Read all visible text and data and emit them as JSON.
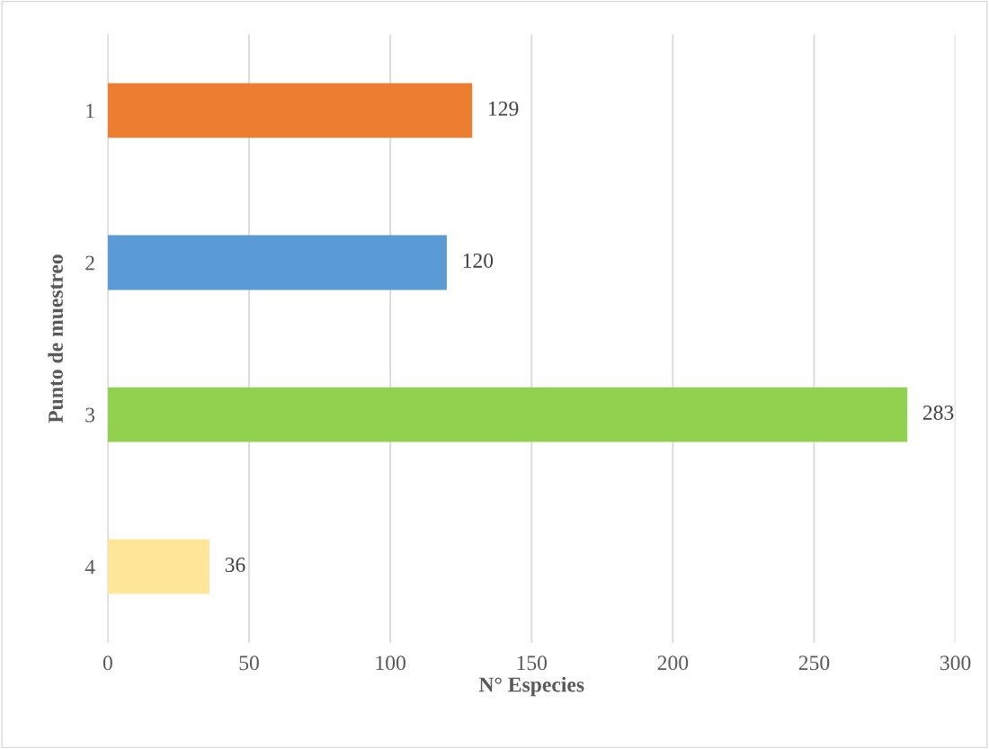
{
  "chart_data": {
    "type": "bar",
    "orientation": "horizontal",
    "xlabel": "N° Especies",
    "ylabel": "Punto de muestreo",
    "categories": [
      "1",
      "2",
      "3",
      "4"
    ],
    "values": [
      129,
      120,
      283,
      36
    ],
    "colors": [
      "#ed7d31",
      "#5b9bd5",
      "#92d050",
      "#ffe699"
    ],
    "xlim": [
      0,
      300
    ],
    "xticks": [
      0,
      50,
      100,
      150,
      200,
      250,
      300
    ],
    "grid": "x",
    "data_labels": true,
    "legend": false
  }
}
